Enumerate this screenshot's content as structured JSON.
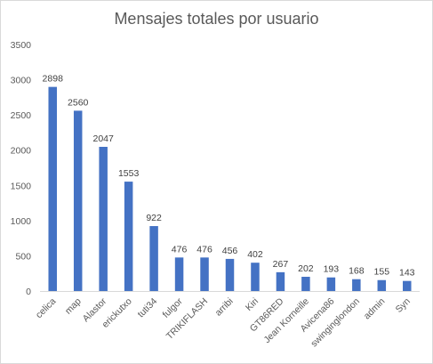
{
  "chart_data": {
    "type": "bar",
    "title": "Mensajes totales por usuario",
    "xlabel": "",
    "ylabel": "",
    "categories": [
      "celica",
      "map",
      "Alastor",
      "erickutxo",
      "tuti34",
      "fulgor",
      "TRIKIFLASH",
      "arribi",
      "Kiri",
      "GT86RED",
      "Jean Korneille",
      "Avicena86",
      "swinginglondon",
      "admin",
      "Syn"
    ],
    "values": [
      2898,
      2560,
      2047,
      1553,
      922,
      476,
      476,
      456,
      402,
      267,
      202,
      193,
      168,
      155,
      143
    ],
    "data_labels": [
      "2898",
      "2560",
      "2047",
      "1553",
      "922",
      "476",
      "476",
      "456",
      "402",
      "267",
      "202",
      "193",
      "168",
      "155",
      "143"
    ],
    "ylim": [
      0,
      3500
    ],
    "yticks": [
      "0",
      "500",
      "1000",
      "1500",
      "2000",
      "2500",
      "3000",
      "3500"
    ],
    "grid": false,
    "legend": "none",
    "bar_color": "#4472c4"
  }
}
